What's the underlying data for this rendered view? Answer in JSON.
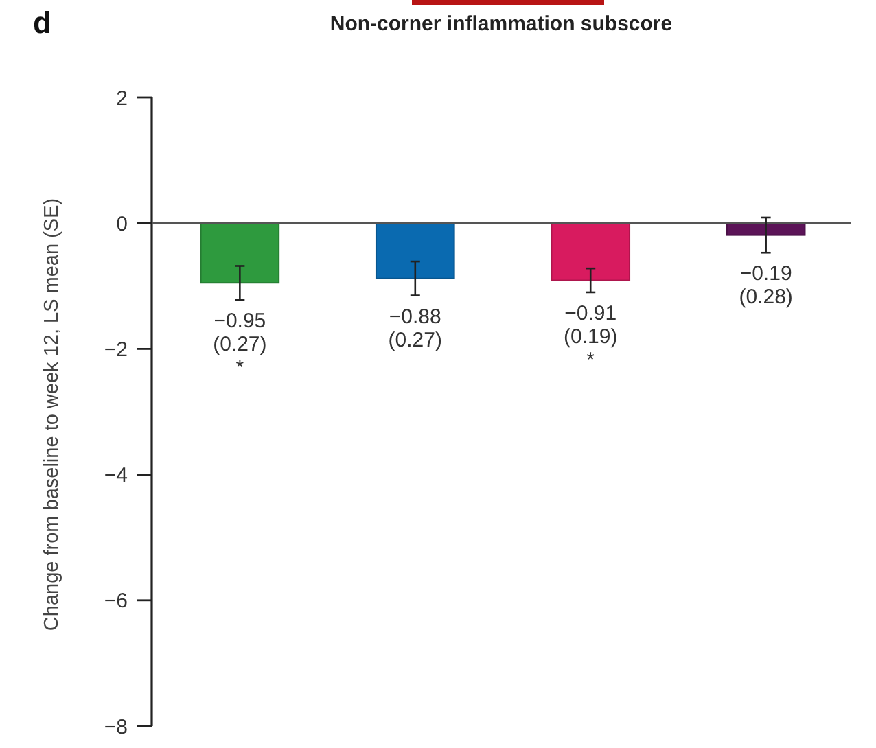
{
  "chart_data": {
    "type": "bar",
    "title": "Non-corner inflammation subscore",
    "ylabel": "Change from baseline to week 12, LS mean (SE)",
    "annotations": [
      "d"
    ],
    "categories": [
      null,
      null,
      null,
      null
    ],
    "values": [
      -0.95,
      -0.88,
      -0.91,
      -0.19
    ],
    "errors": [
      0.27,
      0.27,
      0.19,
      0.28
    ],
    "colors": [
      "#2e9a3e",
      "#0a6ab0",
      "#d81b5f",
      "#5c1458"
    ],
    "value_labels": [
      "−0.95\n(0.27)\n*",
      "−0.88\n(0.27)",
      "−0.91\n(0.19)\n*",
      "−0.19\n(0.28)"
    ],
    "ylim": [
      -8,
      2
    ],
    "yticks": [
      2,
      0,
      {
        "value": -2,
        "label": "−2"
      },
      {
        "value": -4,
        "label": "−4"
      },
      {
        "value": -6,
        "label": "−6"
      },
      {
        "value": -8,
        "label": "−8"
      }
    ]
  }
}
